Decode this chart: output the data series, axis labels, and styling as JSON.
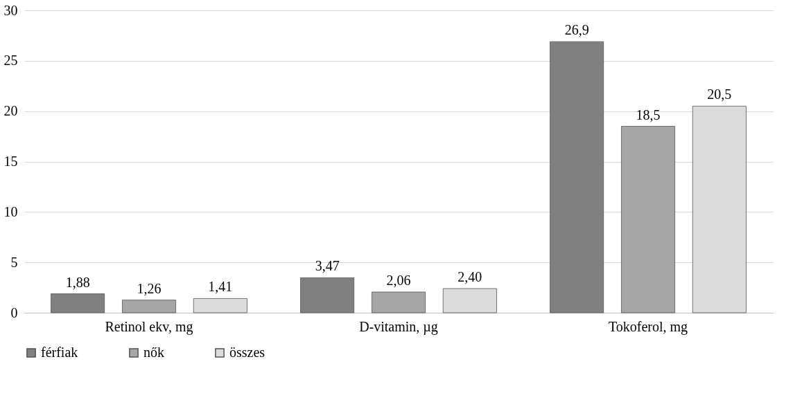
{
  "chart_data": {
    "type": "bar",
    "categories": [
      "Retinol ekv, mg",
      "D-vitamin, µg",
      "Tokoferol, mg"
    ],
    "series": [
      {
        "name": "férfiak",
        "color": "#808080",
        "values": [
          1.88,
          3.47,
          26.9
        ],
        "value_labels": [
          "1,88",
          "3,47",
          "26,9"
        ]
      },
      {
        "name": "nők",
        "color": "#a6a6a6",
        "values": [
          1.26,
          2.06,
          18.5
        ],
        "value_labels": [
          "1,26",
          "2,06",
          "18,5"
        ]
      },
      {
        "name": "összes",
        "color": "#dcdcdc",
        "values": [
          1.41,
          2.4,
          20.5
        ],
        "value_labels": [
          "1,41",
          "2,40",
          "20,5"
        ]
      }
    ],
    "ylim": [
      0,
      30
    ],
    "yticks": [
      0,
      5,
      10,
      15,
      20,
      25,
      30
    ],
    "grid": "y",
    "legend": "bottom"
  }
}
